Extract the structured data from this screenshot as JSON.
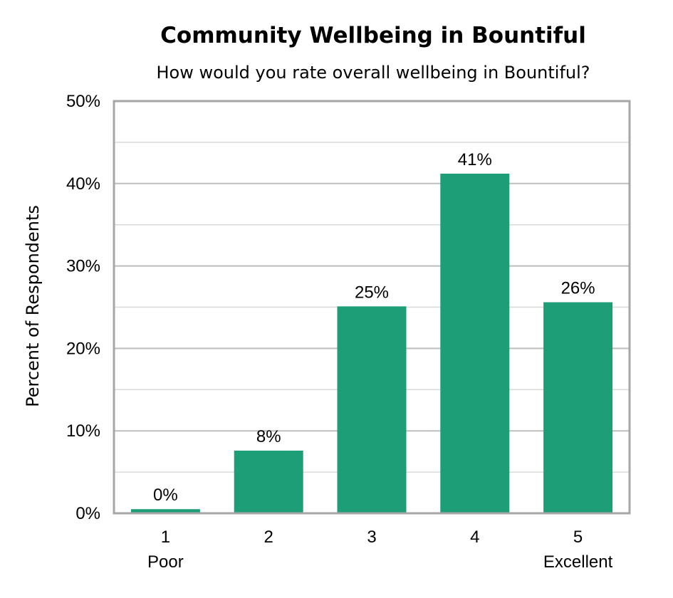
{
  "chart_data": {
    "type": "bar",
    "title": "Community Wellbeing in Bountiful",
    "subtitle": "How would you rate overall wellbeing in Bountiful?",
    "ylabel": "Percent of Respondents",
    "xlabel": "",
    "categories": [
      "1",
      "2",
      "3",
      "4",
      "5"
    ],
    "category_sublabels": [
      "Poor",
      "",
      "",
      "",
      "Excellent"
    ],
    "values": [
      0.5,
      7.6,
      25.1,
      41.2,
      25.6
    ],
    "data_labels": [
      "0%",
      "8%",
      "25%",
      "41%",
      "26%"
    ],
    "ylim": [
      0,
      50
    ],
    "yticks": [
      0,
      10,
      20,
      30,
      40,
      50
    ],
    "ytick_labels": [
      "0%",
      "10%",
      "20%",
      "30%",
      "40%",
      "50%"
    ],
    "grid": true,
    "bar_color": "#1e9e77",
    "grid_color": "#bdbdbd",
    "frame_color": "#a6a6a6"
  }
}
